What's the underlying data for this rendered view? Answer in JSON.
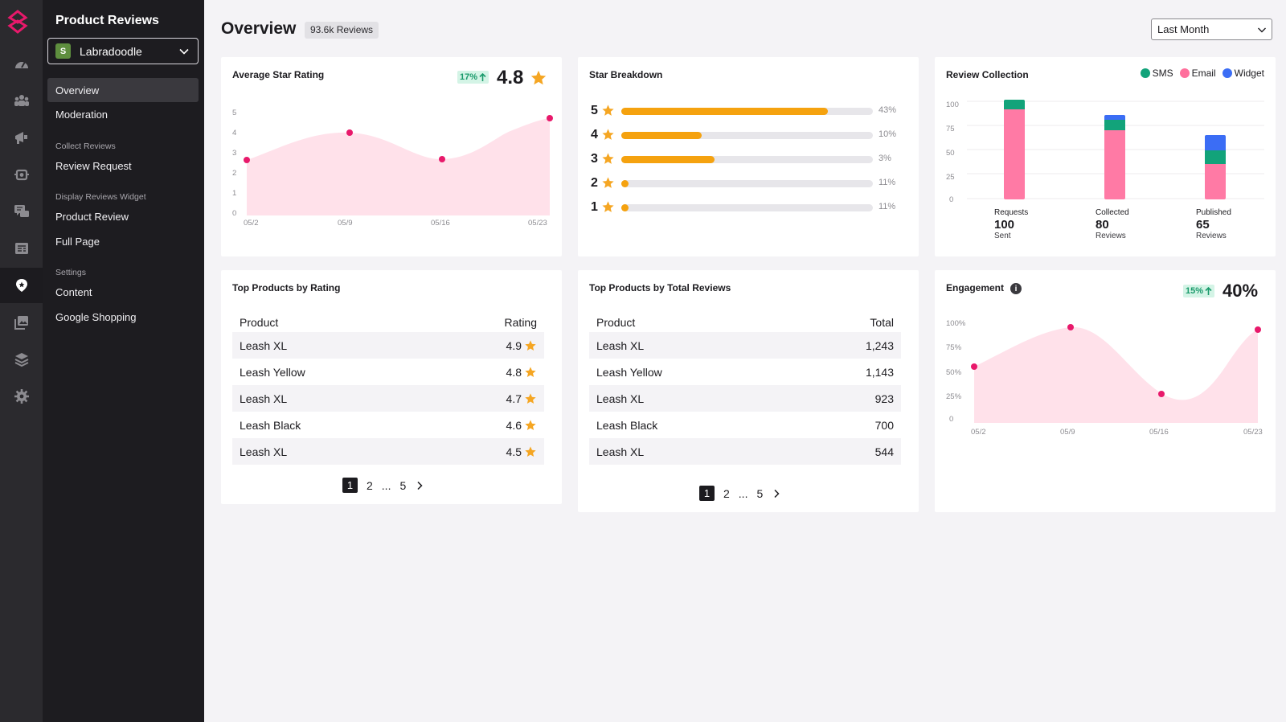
{
  "rail": {
    "icons": [
      "dashboard-icon",
      "audience-icon",
      "campaigns-icon",
      "automation-icon",
      "conversations-icon",
      "content-icon",
      "reviews-icon",
      "gallery-icon",
      "integrations-icon",
      "settings-icon"
    ],
    "active": "reviews-icon"
  },
  "sidebar": {
    "title": "Product Reviews",
    "store": "Labradoodle",
    "items": [
      {
        "label": "Overview",
        "active": true
      },
      {
        "label": "Moderation"
      }
    ],
    "sections": [
      {
        "title": "Collect Reviews",
        "items": [
          "Review Request"
        ]
      },
      {
        "title": "Display Reviews Widget",
        "items": [
          "Product Review",
          "Full Page"
        ]
      },
      {
        "title": "Settings",
        "items": [
          "Content",
          "Google Shopping"
        ]
      }
    ]
  },
  "header": {
    "title": "Overview",
    "badge": "93.6k Reviews",
    "period": "Last Month"
  },
  "avg_rating": {
    "title": "Average Star Rating",
    "trend": "17%",
    "value": "4.8",
    "y_ticks": [
      "5",
      "4",
      "3",
      "2",
      "1",
      "0"
    ],
    "x_ticks": [
      "05/2",
      "05/9",
      "05/16",
      "05/23"
    ]
  },
  "star_breakdown": {
    "title": "Star Breakdown",
    "rows": [
      {
        "stars": "5",
        "pct": "43%",
        "fill": 0.82
      },
      {
        "stars": "4",
        "pct": "10%",
        "fill": 0.32
      },
      {
        "stars": "3",
        "pct": "3%",
        "fill": 0.37
      },
      {
        "stars": "2",
        "pct": "11%",
        "fill": 0.03
      },
      {
        "stars": "1",
        "pct": "11%",
        "fill": 0.03
      }
    ]
  },
  "review_collection": {
    "title": "Review Collection",
    "legend": [
      {
        "label": "SMS",
        "color": "#12a37a"
      },
      {
        "label": "Email",
        "color": "#ff6f9c"
      },
      {
        "label": "Widget",
        "color": "#3b6df5"
      }
    ],
    "y_ticks": [
      "100",
      "75",
      "50",
      "25",
      "0"
    ],
    "columns": [
      {
        "label": "Requests",
        "value": "100",
        "sub": "Sent"
      },
      {
        "label": "Collected",
        "value": "80",
        "sub": "Reviews"
      },
      {
        "label": "Published",
        "value": "65",
        "sub": "Reviews"
      }
    ]
  },
  "top_by_rating": {
    "title": "Top Products by Rating",
    "col_product": "Product",
    "col_value": "Rating",
    "rows": [
      {
        "product": "Leash XL",
        "value": "4.9"
      },
      {
        "product": "Leash Yellow",
        "value": "4.8"
      },
      {
        "product": "Leash XL",
        "value": "4.7"
      },
      {
        "product": "Leash Black",
        "value": "4.6"
      },
      {
        "product": "Leash XL",
        "value": "4.5"
      }
    ],
    "pager": {
      "current": "1",
      "next": "2",
      "ellipsis": "...",
      "last": "5"
    }
  },
  "top_by_total": {
    "title": "Top Products by Total Reviews",
    "col_product": "Product",
    "col_value": "Total",
    "rows": [
      {
        "product": "Leash XL",
        "value": "1,243"
      },
      {
        "product": "Leash Yellow",
        "value": "1,143"
      },
      {
        "product": "Leash XL",
        "value": "923"
      },
      {
        "product": "Leash Black",
        "value": "700"
      },
      {
        "product": "Leash XL",
        "value": "544"
      }
    ],
    "pager": {
      "current": "1",
      "next": "2",
      "ellipsis": "...",
      "last": "5"
    }
  },
  "engagement": {
    "title": "Engagement",
    "trend": "15%",
    "value": "40%",
    "y_ticks": [
      "100%",
      "75%",
      "50%",
      "25%",
      "0"
    ],
    "x_ticks": [
      "05/2",
      "05/9",
      "05/16",
      "05/23"
    ]
  },
  "colors": {
    "accent": "#e8196b",
    "star": "#f5a623",
    "bar": "#f5a20f",
    "area": "#ffe1ea",
    "trend_bg": "#d4f4e6",
    "trend_fg": "#1a9a6b"
  }
}
